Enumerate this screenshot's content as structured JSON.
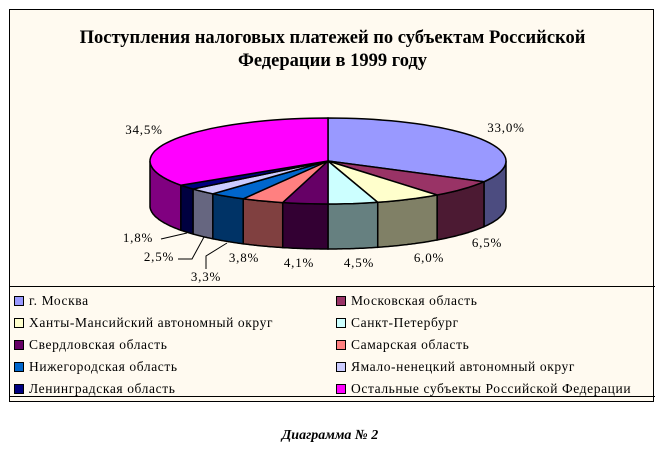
{
  "chart_data": {
    "type": "pie",
    "style": "3d",
    "title_lines": [
      "Поступления налоговых платежей по субъектам Российской",
      "Федерации в 1999 году"
    ],
    "start_angle": "12 o'clock, clockwise",
    "legend_position": "bottom",
    "slices": [
      {
        "name": "г. Москва",
        "value": 33.0,
        "label": "33,0%",
        "color": "#9999ff",
        "side": "#4c4c80"
      },
      {
        "name": "Московская область",
        "value": 6.5,
        "label": "6,5%",
        "color": "#993366",
        "side": "#4c1a33"
      },
      {
        "name": "Ханты-Мансийский автономный округ",
        "value": 6.0,
        "label": "6,0%",
        "color": "#ffffcc",
        "side": "#808066"
      },
      {
        "name": "Санкт-Петербург",
        "value": 4.5,
        "label": "4,5%",
        "color": "#ccffff",
        "side": "#668080"
      },
      {
        "name": "Свердловская область",
        "value": 4.1,
        "label": "4,1%",
        "color": "#660066",
        "side": "#330033"
      },
      {
        "name": "Самарская область",
        "value": 3.8,
        "label": "3,8%",
        "color": "#ff8080",
        "side": "#804040"
      },
      {
        "name": "Нижегородская область",
        "value": 3.3,
        "label": "3,3%",
        "color": "#0066cc",
        "side": "#003366"
      },
      {
        "name": "Ямало-ненецкий автономный округ",
        "value": 2.5,
        "label": "2,5%",
        "color": "#ccccff",
        "side": "#666680"
      },
      {
        "name": "Ленинградская область",
        "value": 1.8,
        "label": "1,8%",
        "color": "#000080",
        "side": "#000040"
      },
      {
        "name": "Остальные субъекты Российской Федерации",
        "value": 34.5,
        "label": "34,5%",
        "color": "#ff00ff",
        "side": "#800080"
      }
    ]
  },
  "caption": "Диаграмма № 2"
}
